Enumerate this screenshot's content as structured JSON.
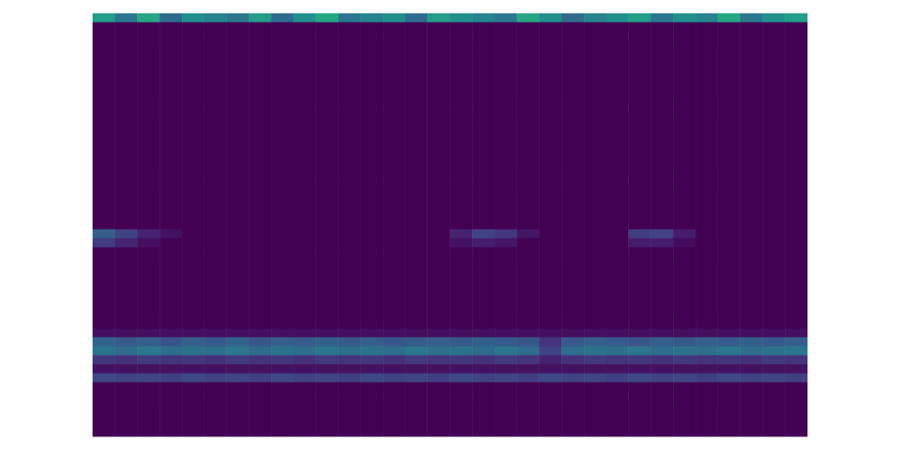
{
  "chart_data": {
    "type": "heatmap",
    "xlim": [
      0,
      32
    ],
    "ylim": [
      0,
      47
    ],
    "zlim": [
      0,
      1
    ],
    "tick_labels": false,
    "cells": [
      [
        0.55,
        0.4,
        0.6,
        0.35,
        0.5,
        0.45,
        0.4,
        0.55,
        0.35,
        0.5,
        0.6,
        0.4,
        0.45,
        0.5,
        0.35,
        0.55,
        0.5,
        0.45,
        0.4,
        0.6,
        0.5,
        0.35,
        0.45,
        0.5,
        0.55,
        0.4,
        0.5,
        0.45,
        0.6,
        0.4,
        0.5,
        0.55
      ],
      [
        0,
        0,
        0,
        0,
        0,
        0,
        0,
        0,
        0,
        0,
        0,
        0,
        0,
        0,
        0,
        0,
        0,
        0,
        0,
        0,
        0,
        0,
        0,
        0,
        0,
        0,
        0,
        0,
        0,
        0,
        0,
        0
      ],
      [
        0,
        0,
        0,
        0,
        0,
        0,
        0,
        0,
        0,
        0,
        0,
        0,
        0,
        0,
        0,
        0,
        0,
        0,
        0,
        0,
        0,
        0,
        0,
        0,
        0,
        0,
        0,
        0,
        0,
        0,
        0,
        0
      ],
      [
        0,
        0,
        0,
        0,
        0,
        0,
        0,
        0,
        0,
        0,
        0,
        0,
        0,
        0,
        0,
        0,
        0,
        0,
        0,
        0,
        0,
        0,
        0,
        0,
        0,
        0,
        0,
        0,
        0,
        0,
        0,
        0
      ],
      [
        0,
        0,
        0,
        0,
        0,
        0,
        0,
        0,
        0,
        0,
        0,
        0,
        0,
        0,
        0,
        0,
        0,
        0,
        0,
        0,
        0,
        0,
        0,
        0,
        0,
        0,
        0,
        0,
        0,
        0,
        0,
        0
      ],
      [
        0,
        0,
        0,
        0,
        0,
        0,
        0,
        0,
        0,
        0,
        0,
        0,
        0,
        0,
        0,
        0,
        0,
        0,
        0,
        0,
        0,
        0,
        0,
        0,
        0,
        0,
        0,
        0,
        0,
        0,
        0,
        0
      ],
      [
        0,
        0,
        0,
        0,
        0,
        0,
        0,
        0,
        0,
        0,
        0,
        0,
        0,
        0,
        0,
        0,
        0,
        0,
        0,
        0,
        0,
        0,
        0,
        0,
        0,
        0,
        0,
        0,
        0,
        0,
        0,
        0
      ],
      [
        0,
        0,
        0,
        0,
        0,
        0,
        0,
        0,
        0,
        0,
        0,
        0,
        0,
        0,
        0,
        0,
        0,
        0,
        0,
        0,
        0,
        0,
        0,
        0,
        0,
        0,
        0,
        0,
        0,
        0,
        0,
        0
      ],
      [
        0,
        0,
        0,
        0,
        0,
        0,
        0,
        0,
        0,
        0,
        0,
        0,
        0,
        0,
        0,
        0,
        0,
        0,
        0,
        0,
        0,
        0,
        0,
        0,
        0,
        0,
        0,
        0,
        0,
        0,
        0,
        0
      ],
      [
        0,
        0,
        0,
        0,
        0,
        0,
        0,
        0,
        0,
        0,
        0,
        0,
        0,
        0,
        0,
        0,
        0,
        0,
        0,
        0,
        0,
        0,
        0,
        0,
        0,
        0,
        0,
        0,
        0,
        0,
        0,
        0
      ],
      [
        0,
        0,
        0,
        0,
        0,
        0,
        0,
        0,
        0,
        0,
        0,
        0,
        0,
        0,
        0,
        0,
        0,
        0,
        0,
        0,
        0,
        0,
        0,
        0,
        0,
        0,
        0,
        0,
        0,
        0,
        0,
        0
      ],
      [
        0,
        0,
        0,
        0,
        0,
        0,
        0,
        0,
        0,
        0,
        0,
        0,
        0,
        0,
        0,
        0,
        0,
        0,
        0,
        0,
        0,
        0,
        0,
        0,
        0,
        0,
        0,
        0,
        0,
        0,
        0,
        0
      ],
      [
        0,
        0,
        0,
        0,
        0,
        0,
        0,
        0,
        0,
        0,
        0,
        0,
        0,
        0,
        0,
        0,
        0,
        0,
        0,
        0,
        0,
        0,
        0,
        0,
        0,
        0,
        0,
        0,
        0,
        0,
        0,
        0
      ],
      [
        0,
        0,
        0,
        0,
        0,
        0,
        0,
        0,
        0,
        0,
        0,
        0,
        0,
        0,
        0,
        0,
        0,
        0,
        0,
        0,
        0,
        0,
        0,
        0,
        0,
        0,
        0,
        0,
        0,
        0,
        0,
        0
      ],
      [
        0,
        0,
        0,
        0,
        0,
        0,
        0,
        0,
        0,
        0,
        0,
        0,
        0,
        0,
        0,
        0,
        0,
        0,
        0,
        0,
        0,
        0,
        0,
        0,
        0,
        0,
        0,
        0,
        0,
        0,
        0,
        0
      ],
      [
        0,
        0,
        0,
        0,
        0,
        0,
        0,
        0,
        0,
        0,
        0,
        0,
        0,
        0,
        0,
        0,
        0,
        0,
        0,
        0,
        0,
        0,
        0,
        0,
        0,
        0,
        0,
        0,
        0,
        0,
        0,
        0
      ],
      [
        0,
        0,
        0,
        0,
        0,
        0,
        0,
        0,
        0,
        0,
        0,
        0,
        0,
        0,
        0,
        0,
        0,
        0,
        0,
        0,
        0,
        0,
        0,
        0,
        0,
        0,
        0,
        0,
        0,
        0,
        0,
        0
      ],
      [
        0,
        0,
        0,
        0,
        0,
        0,
        0,
        0,
        0,
        0,
        0,
        0,
        0,
        0,
        0,
        0,
        0,
        0,
        0,
        0,
        0,
        0,
        0,
        0,
        0,
        0,
        0,
        0,
        0,
        0,
        0,
        0
      ],
      [
        0,
        0,
        0,
        0,
        0,
        0,
        0,
        0,
        0,
        0,
        0,
        0,
        0,
        0,
        0,
        0,
        0,
        0,
        0,
        0,
        0,
        0,
        0,
        0,
        0,
        0,
        0,
        0,
        0,
        0,
        0,
        0
      ],
      [
        0,
        0,
        0,
        0,
        0,
        0,
        0,
        0,
        0,
        0,
        0,
        0,
        0,
        0,
        0,
        0,
        0,
        0,
        0,
        0,
        0,
        0,
        0,
        0,
        0,
        0,
        0,
        0,
        0,
        0,
        0,
        0
      ],
      [
        0,
        0,
        0,
        0,
        0,
        0,
        0,
        0,
        0,
        0,
        0,
        0,
        0,
        0,
        0,
        0,
        0,
        0,
        0,
        0,
        0,
        0,
        0,
        0,
        0,
        0,
        0,
        0,
        0,
        0,
        0,
        0
      ],
      [
        0,
        0,
        0,
        0,
        0,
        0,
        0,
        0,
        0,
        0,
        0,
        0,
        0,
        0,
        0,
        0,
        0,
        0,
        0,
        0,
        0,
        0,
        0,
        0,
        0,
        0,
        0,
        0,
        0,
        0,
        0,
        0
      ],
      [
        0,
        0,
        0,
        0,
        0,
        0,
        0,
        0,
        0,
        0,
        0,
        0,
        0,
        0,
        0,
        0,
        0,
        0,
        0,
        0,
        0,
        0,
        0,
        0,
        0,
        0,
        0,
        0,
        0,
        0,
        0,
        0
      ],
      [
        0,
        0,
        0,
        0,
        0,
        0,
        0,
        0,
        0,
        0,
        0,
        0,
        0,
        0,
        0,
        0,
        0,
        0,
        0,
        0,
        0,
        0,
        0,
        0,
        0,
        0,
        0,
        0,
        0,
        0,
        0,
        0
      ],
      [
        0.3,
        0.2,
        0.1,
        0.05,
        0,
        0,
        0,
        0,
        0,
        0,
        0,
        0,
        0,
        0,
        0,
        0,
        0.1,
        0.2,
        0.16,
        0.06,
        0,
        0,
        0,
        0,
        0.18,
        0.2,
        0.08,
        0,
        0,
        0,
        0,
        0
      ],
      [
        0.18,
        0.1,
        0.04,
        0,
        0,
        0,
        0,
        0,
        0,
        0,
        0,
        0,
        0,
        0,
        0,
        0,
        0.05,
        0.08,
        0.06,
        0,
        0,
        0,
        0,
        0,
        0.08,
        0.08,
        0.03,
        0,
        0,
        0,
        0,
        0
      ],
      [
        0,
        0,
        0,
        0,
        0,
        0,
        0,
        0,
        0,
        0,
        0,
        0,
        0,
        0,
        0,
        0,
        0,
        0,
        0,
        0,
        0,
        0,
        0,
        0,
        0,
        0,
        0,
        0,
        0,
        0,
        0,
        0
      ],
      [
        0,
        0,
        0,
        0,
        0,
        0,
        0,
        0,
        0,
        0,
        0,
        0,
        0,
        0,
        0,
        0,
        0,
        0,
        0,
        0,
        0,
        0,
        0,
        0,
        0,
        0,
        0,
        0,
        0,
        0,
        0,
        0
      ],
      [
        0,
        0,
        0,
        0,
        0,
        0,
        0,
        0,
        0,
        0,
        0,
        0,
        0,
        0,
        0,
        0,
        0,
        0,
        0,
        0,
        0,
        0,
        0,
        0,
        0,
        0,
        0,
        0,
        0,
        0,
        0,
        0
      ],
      [
        0,
        0,
        0,
        0,
        0,
        0,
        0,
        0,
        0,
        0,
        0,
        0,
        0,
        0,
        0,
        0,
        0,
        0,
        0,
        0,
        0,
        0,
        0,
        0,
        0,
        0,
        0,
        0,
        0,
        0,
        0,
        0
      ],
      [
        0,
        0,
        0,
        0,
        0,
        0,
        0,
        0,
        0,
        0,
        0,
        0,
        0,
        0,
        0,
        0,
        0,
        0,
        0,
        0,
        0,
        0,
        0,
        0,
        0,
        0,
        0,
        0,
        0,
        0,
        0,
        0
      ],
      [
        0,
        0,
        0,
        0,
        0,
        0,
        0,
        0,
        0,
        0,
        0,
        0,
        0,
        0,
        0,
        0,
        0,
        0,
        0,
        0,
        0,
        0,
        0,
        0,
        0,
        0,
        0,
        0,
        0,
        0,
        0,
        0
      ],
      [
        0,
        0,
        0,
        0,
        0,
        0,
        0,
        0,
        0,
        0,
        0,
        0,
        0,
        0,
        0,
        0,
        0,
        0,
        0,
        0,
        0,
        0,
        0,
        0,
        0,
        0,
        0,
        0,
        0,
        0,
        0,
        0
      ],
      [
        0,
        0,
        0,
        0,
        0,
        0,
        0,
        0,
        0,
        0,
        0,
        0,
        0,
        0,
        0,
        0,
        0,
        0,
        0,
        0,
        0,
        0,
        0,
        0,
        0,
        0,
        0,
        0,
        0,
        0,
        0,
        0
      ],
      [
        0,
        0,
        0,
        0,
        0,
        0,
        0,
        0,
        0,
        0,
        0,
        0,
        0,
        0,
        0,
        0,
        0,
        0,
        0,
        0,
        0,
        0,
        0,
        0,
        0,
        0,
        0,
        0,
        0,
        0,
        0,
        0
      ],
      [
        0.04,
        0.04,
        0.04,
        0.04,
        0.04,
        0.04,
        0.04,
        0.04,
        0.04,
        0.04,
        0.04,
        0.04,
        0.04,
        0.04,
        0.04,
        0.04,
        0.04,
        0.04,
        0.04,
        0.04,
        0.04,
        0.04,
        0.04,
        0.04,
        0.04,
        0.04,
        0.04,
        0.04,
        0.04,
        0.04,
        0.04,
        0.04
      ],
      [
        0.32,
        0.28,
        0.3,
        0.26,
        0.3,
        0.28,
        0.32,
        0.27,
        0.3,
        0.29,
        0.31,
        0.28,
        0.3,
        0.27,
        0.29,
        0.3,
        0.28,
        0.31,
        0.29,
        0.27,
        0.15,
        0.28,
        0.3,
        0.29,
        0.27,
        0.3,
        0.28,
        0.3,
        0.29,
        0.31,
        0.28,
        0.3
      ],
      [
        0.38,
        0.35,
        0.4,
        0.36,
        0.38,
        0.37,
        0.4,
        0.35,
        0.38,
        0.36,
        0.39,
        0.37,
        0.38,
        0.36,
        0.4,
        0.37,
        0.38,
        0.35,
        0.39,
        0.36,
        0.2,
        0.36,
        0.38,
        0.37,
        0.39,
        0.36,
        0.38,
        0.37,
        0.4,
        0.36,
        0.38,
        0.39
      ],
      [
        0.16,
        0.14,
        0.17,
        0.15,
        0.16,
        0.14,
        0.17,
        0.15,
        0.16,
        0.14,
        0.17,
        0.15,
        0.16,
        0.14,
        0.17,
        0.15,
        0.16,
        0.14,
        0.17,
        0.15,
        0.1,
        0.14,
        0.17,
        0.15,
        0.16,
        0.14,
        0.17,
        0.15,
        0.16,
        0.14,
        0.17,
        0.15
      ],
      [
        0.05,
        0.05,
        0.05,
        0.05,
        0.05,
        0.05,
        0.05,
        0.05,
        0.05,
        0.05,
        0.05,
        0.05,
        0.05,
        0.05,
        0.05,
        0.05,
        0.05,
        0.05,
        0.05,
        0.05,
        0.05,
        0.05,
        0.05,
        0.05,
        0.05,
        0.05,
        0.05,
        0.05,
        0.05,
        0.05,
        0.05,
        0.05
      ],
      [
        0.22,
        0.2,
        0.21,
        0.19,
        0.22,
        0.2,
        0.21,
        0.19,
        0.22,
        0.2,
        0.21,
        0.19,
        0.22,
        0.2,
        0.21,
        0.19,
        0.22,
        0.2,
        0.21,
        0.19,
        0.22,
        0.2,
        0.21,
        0.19,
        0.22,
        0.2,
        0.21,
        0.19,
        0.22,
        0.2,
        0.21,
        0.19
      ],
      [
        0,
        0,
        0,
        0,
        0,
        0,
        0,
        0,
        0,
        0,
        0,
        0,
        0,
        0,
        0,
        0,
        0,
        0,
        0,
        0,
        0,
        0,
        0,
        0,
        0,
        0,
        0,
        0,
        0,
        0,
        0,
        0
      ],
      [
        0,
        0,
        0,
        0,
        0,
        0,
        0,
        0,
        0,
        0,
        0,
        0,
        0,
        0,
        0,
        0,
        0,
        0,
        0,
        0,
        0,
        0,
        0,
        0,
        0,
        0,
        0,
        0,
        0,
        0,
        0,
        0
      ],
      [
        0,
        0,
        0,
        0,
        0,
        0,
        0,
        0,
        0,
        0,
        0,
        0,
        0,
        0,
        0,
        0,
        0,
        0,
        0,
        0,
        0,
        0,
        0,
        0,
        0,
        0,
        0,
        0,
        0,
        0,
        0,
        0
      ],
      [
        0,
        0,
        0,
        0,
        0,
        0,
        0,
        0,
        0,
        0,
        0,
        0,
        0,
        0,
        0,
        0,
        0,
        0,
        0,
        0,
        0,
        0,
        0,
        0,
        0,
        0,
        0,
        0,
        0,
        0,
        0,
        0
      ],
      [
        0,
        0,
        0,
        0,
        0,
        0,
        0,
        0,
        0,
        0,
        0,
        0,
        0,
        0,
        0,
        0,
        0,
        0,
        0,
        0,
        0,
        0,
        0,
        0,
        0,
        0,
        0,
        0,
        0,
        0,
        0,
        0
      ],
      [
        0,
        0,
        0,
        0,
        0,
        0,
        0,
        0,
        0,
        0,
        0,
        0,
        0,
        0,
        0,
        0,
        0,
        0,
        0,
        0,
        0,
        0,
        0,
        0,
        0,
        0,
        0,
        0,
        0,
        0,
        0,
        0
      ]
    ]
  }
}
